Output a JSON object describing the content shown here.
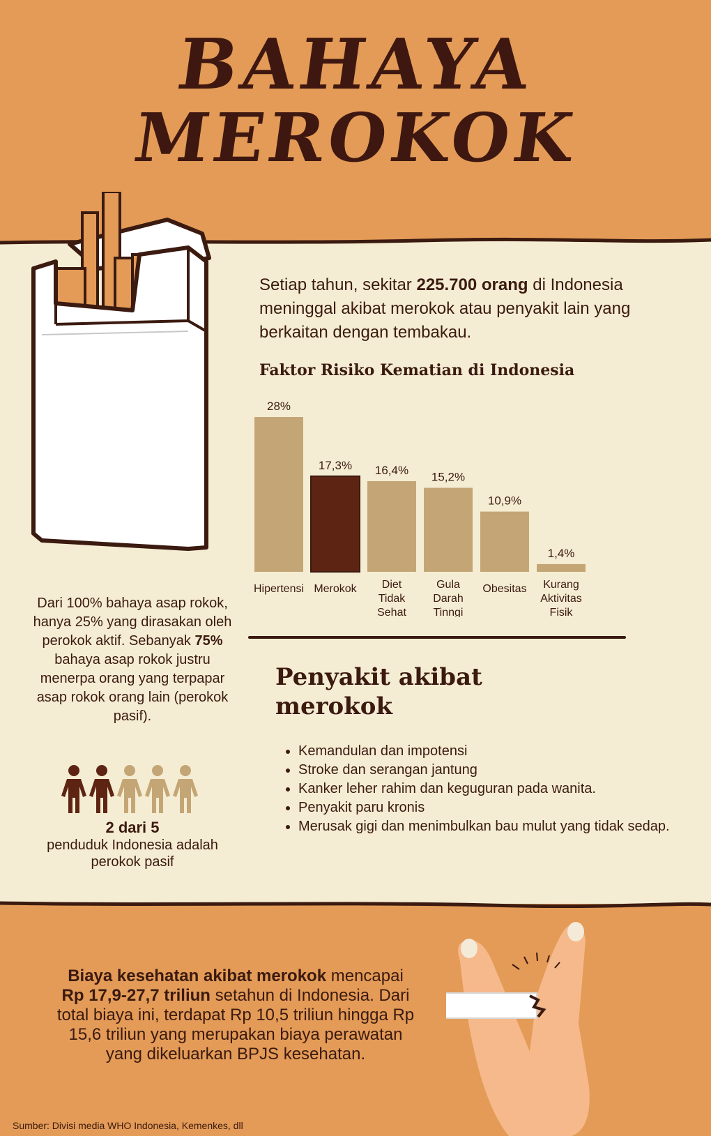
{
  "header": {
    "title_line1": "BAHAYA",
    "title_line2": "MEROKOK"
  },
  "intro": {
    "prefix": "Setiap tahun, sekitar ",
    "highlight": "225.700 orang",
    "suffix": " di Indonesia meninggal akibat merokok atau penyakit lain yang berkaitan dengan tembakau."
  },
  "chart_title": "Faktor Risiko Kematian di Indonesia",
  "chart_data": {
    "type": "bar",
    "title": "Faktor Risiko Kematian di Indonesia",
    "categories": [
      [
        "Hipertensi"
      ],
      [
        "Merokok"
      ],
      [
        "Diet",
        "Tidak",
        "Sehat"
      ],
      [
        "Gula",
        "Darah",
        "Tinngi"
      ],
      [
        "Obesitas"
      ],
      [
        "Kurang",
        "Aktivitas",
        "Fisik"
      ]
    ],
    "values": [
      28,
      17.3,
      16.4,
      15.2,
      10.9,
      1.4
    ],
    "labels": [
      "28%",
      "17,3%",
      "16,4%",
      "15,2%",
      "10,9%",
      "1,4%"
    ],
    "highlight_index": 1,
    "ylim": [
      0,
      28
    ],
    "colors": {
      "bar": "#c4a676",
      "highlight": "#5e2413"
    }
  },
  "diseases": {
    "title_line1": "Penyakit akibat",
    "title_line2": "merokok",
    "items": [
      "Kemandulan dan impotensi",
      "Stroke dan serangan jantung",
      "Kanker leher rahim dan keguguran pada wanita.",
      "Penyakit paru kronis",
      "Merusak gigi dan menimbulkan bau mulut yang tidak sedap."
    ]
  },
  "passive": {
    "text_before": "Dari 100% bahaya asap rokok, hanya 25% yang dirasakan oleh perokok aktif. Sebanyak ",
    "highlight": "75%",
    "text_after": " bahaya asap rokok justru menerpa orang yang terpapar asap rokok orang lain (perokok pasif).",
    "stat_big": "2 dari 5",
    "stat_small": "penduduk Indonesia adalah perokok pasif",
    "people_total": 5,
    "people_highlight": 2
  },
  "cost": {
    "bold1": "Biaya kesehatan akibat merokok",
    "text1": " mencapai ",
    "bold2": "Rp 17,9-27,7 triliun",
    "text2": " setahun di Indonesia. Dari total biaya ini, terdapat Rp 10,5 triliun hingga Rp 15,6 triliun yang merupakan biaya perawatan yang dikeluarkan BPJS kesehatan."
  },
  "source": "Sumber: Divisi media WHO Indonesia, Kemenkes, dll",
  "colors": {
    "orange": "#e39b57",
    "cream": "#f5edd3",
    "brown": "#3b1a10",
    "tan": "#c4a676",
    "dark_red": "#5e2413"
  }
}
